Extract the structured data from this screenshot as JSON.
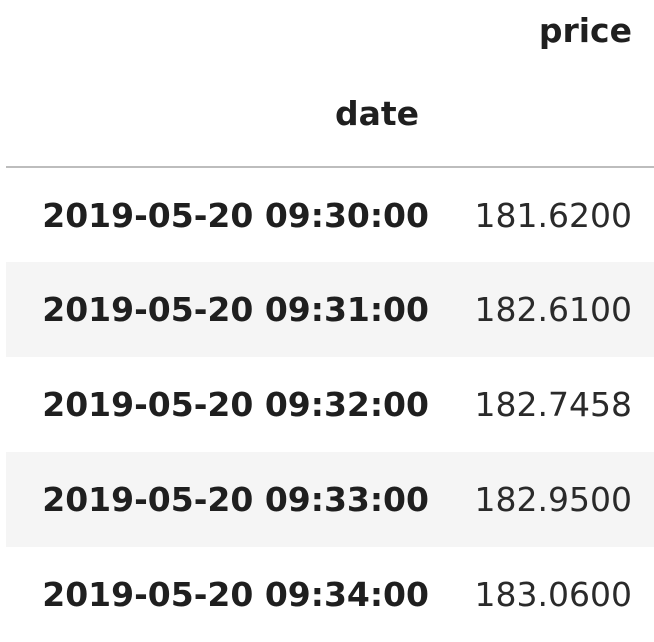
{
  "table": {
    "column_header": "price",
    "index_header": "date",
    "rows": [
      {
        "date": "2019-05-20 09:30:00",
        "price": "181.6200"
      },
      {
        "date": "2019-05-20 09:31:00",
        "price": "182.6100"
      },
      {
        "date": "2019-05-20 09:32:00",
        "price": "182.7458"
      },
      {
        "date": "2019-05-20 09:33:00",
        "price": "182.9500"
      },
      {
        "date": "2019-05-20 09:34:00",
        "price": "183.0600"
      }
    ]
  },
  "colors": {
    "background": "#ffffff",
    "stripe": "#f5f5f5",
    "header_rule": "#bdbdbd",
    "text": "#1f1f1f"
  }
}
